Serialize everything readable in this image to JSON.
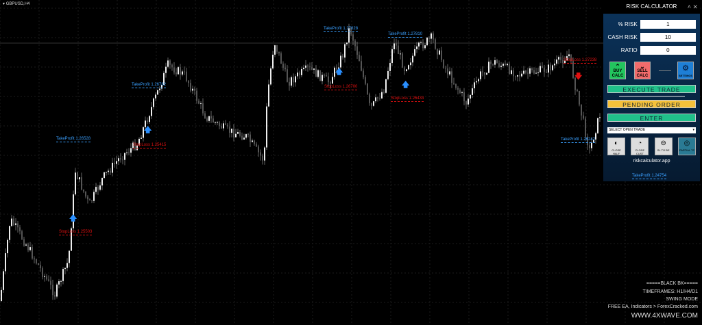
{
  "symbol": "GBPUSD,H4",
  "labels": [
    {
      "type": "tp",
      "text": "TakeProfit 1.27828"
    },
    {
      "type": "tp",
      "text": "TakeProfit 1.27810"
    },
    {
      "type": "tp",
      "text": "TakeProfit 1.26782"
    },
    {
      "type": "tp",
      "text": "TakeProfit 1.26528"
    },
    {
      "type": "tp",
      "text": "TakeProfit 1.26242"
    },
    {
      "type": "tp",
      "text": "TakeProfit 1.24754"
    },
    {
      "type": "sl",
      "text": "StopLoss 1.26700"
    },
    {
      "type": "sl",
      "text": "StopLoss 1.26433"
    },
    {
      "type": "sl",
      "text": "StopLoss 1.25415"
    },
    {
      "type": "sl",
      "text": "StopLoss 1.25503"
    },
    {
      "type": "sl",
      "text": "StopLoss 1.27238"
    }
  ],
  "panel": {
    "title": "RISK CALCULATOR",
    "fields": [
      {
        "label": "% RISK",
        "value": "1"
      },
      {
        "label": "CASH RISK",
        "value": "10"
      },
      {
        "label": "RATIO",
        "value": "0"
      }
    ],
    "buy_label": "BUY CALC",
    "sell_label": "SELL CALC",
    "settings_label": "SETTINGS",
    "execute": "EXECUTE TRADE",
    "pending": "PENDING ORDER",
    "enter": "ENTER",
    "select": "SELECT OPEN TRADE",
    "icons": [
      "CLOSE HALF",
      "CLOSE CUST",
      "SL TO BE",
      "PARTIAL TP"
    ],
    "site": "riskcalculator.app",
    "colors": {
      "buy": "#22c55e",
      "sell": "#f26b6b",
      "settings": "#1e7fd6",
      "execute": "#20c08a",
      "pending": "#f5c13a",
      "bull_arrow": "#2a8fff",
      "bear_arrow": "#e01010"
    }
  },
  "footer": [
    "=====BLACK BK=====",
    "TIMEFRAMES: H1/H4/D1",
    "SWING MODE",
    "FREE EA, Indicators > ForexCracked.com",
    "WWW.4XWAVE.COM"
  ]
}
